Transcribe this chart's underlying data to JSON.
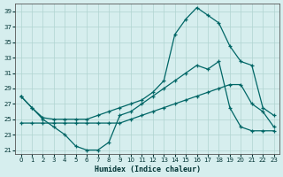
{
  "xlabel": "Humidex (Indice chaleur)",
  "bg_color": "#d6eeee",
  "grid_color": "#b0d4d0",
  "line_color": "#006666",
  "ylim": [
    20.5,
    40.0
  ],
  "xlim": [
    -0.5,
    23.5
  ],
  "yticks": [
    21,
    23,
    25,
    27,
    29,
    31,
    33,
    35,
    37,
    39
  ],
  "xticks": [
    0,
    1,
    2,
    3,
    4,
    5,
    6,
    7,
    8,
    9,
    10,
    11,
    12,
    13,
    14,
    15,
    16,
    17,
    18,
    19,
    20,
    21,
    22,
    23
  ],
  "line1_y": [
    28.0,
    26.5,
    25.2,
    25.0,
    25.0,
    25.0,
    25.0,
    25.5,
    26.0,
    26.5,
    27.0,
    27.5,
    28.5,
    30.0,
    36.0,
    38.0,
    39.5,
    38.5,
    37.5,
    34.5,
    32.5,
    32.0,
    26.5,
    25.5
  ],
  "line2_y": [
    28.0,
    26.5,
    25.0,
    24.0,
    23.0,
    21.5,
    21.0,
    21.0,
    22.0,
    25.5,
    26.0,
    27.0,
    28.0,
    29.0,
    30.0,
    31.0,
    32.0,
    31.5,
    32.5,
    26.5,
    24.0,
    23.5,
    23.5,
    23.5
  ],
  "line3_y": [
    24.5,
    24.5,
    24.5,
    24.5,
    24.5,
    24.5,
    24.5,
    24.5,
    24.5,
    24.5,
    25.0,
    25.5,
    26.0,
    26.5,
    27.0,
    27.5,
    28.0,
    28.5,
    29.0,
    29.5,
    29.5,
    27.0,
    26.0,
    24.0
  ]
}
